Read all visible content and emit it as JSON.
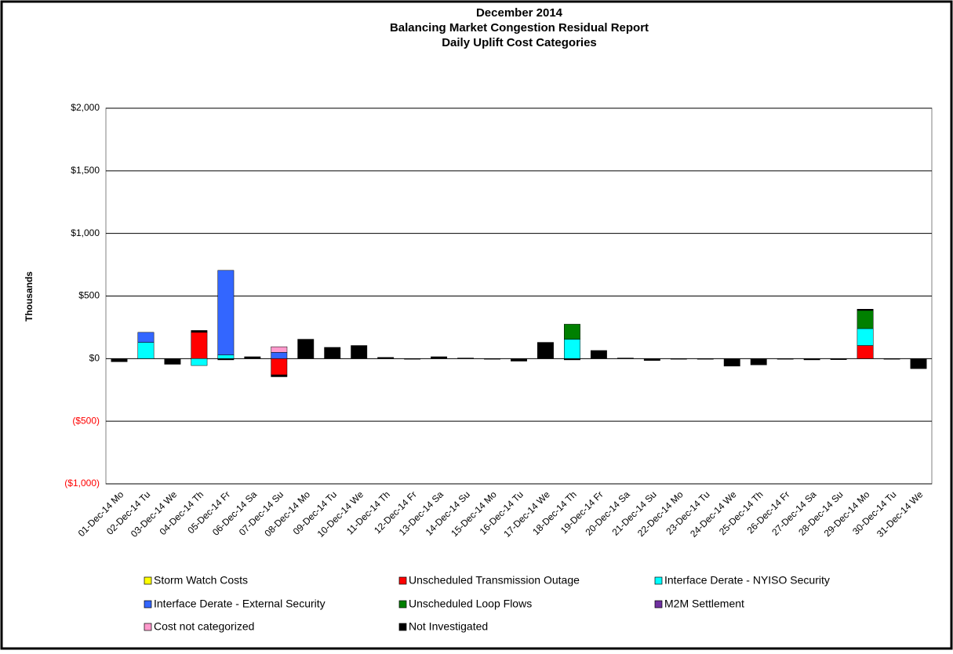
{
  "chart_data": {
    "type": "stacked_bar",
    "title": [
      "December 2014",
      "Balancing Market Congestion Residual Report",
      "Daily Uplift Cost Categories"
    ],
    "y_label": "Thousands",
    "categories": [
      "01-Dec-14 Mo",
      "02-Dec-14 Tu",
      "03-Dec-14 We",
      "04-Dec-14 Th",
      "05-Dec-14 Fr",
      "06-Dec-14 Sa",
      "07-Dec-14 Su",
      "08-Dec-14 Mo",
      "09-Dec-14 Tu",
      "10-Dec-14 We",
      "11-Dec-14 Th",
      "12-Dec-14 Fr",
      "13-Dec-14 Sa",
      "14-Dec-14 Su",
      "15-Dec-14 Mo",
      "16-Dec-14 Tu",
      "17-Dec-14 We",
      "18-Dec-14 Th",
      "19-Dec-14 Fr",
      "20-Dec-14 Sa",
      "21-Dec-14 Su",
      "22-Dec-14 Mo",
      "23-Dec-14 Tu",
      "24-Dec-14 We",
      "25-Dec-14 Th",
      "26-Dec-14 Fr",
      "27-Dec-14 Sa",
      "28-Dec-14 Su",
      "29-Dec-14 Mo",
      "30-Dec-14 Tu",
      "31-Dec-14 We"
    ],
    "series": [
      {
        "name": "Storm Watch Costs",
        "color": "#ffff00",
        "values": [
          0,
          0,
          0,
          0,
          0,
          0,
          0,
          0,
          0,
          0,
          0,
          0,
          0,
          0,
          0,
          0,
          0,
          0,
          0,
          0,
          0,
          0,
          0,
          0,
          0,
          0,
          0,
          0,
          0,
          0,
          0
        ]
      },
      {
        "name": "Unscheduled Transmission Outage",
        "color": "#ff0000",
        "values": [
          0,
          0,
          0,
          210,
          0,
          0,
          -130,
          0,
          0,
          0,
          0,
          0,
          0,
          0,
          0,
          0,
          0,
          0,
          0,
          0,
          0,
          0,
          0,
          0,
          0,
          0,
          0,
          0,
          105,
          0,
          0
        ]
      },
      {
        "name": "Interface Derate - NYISO Security",
        "color": "#00ffff",
        "values": [
          0,
          130,
          0,
          -55,
          30,
          0,
          0,
          0,
          0,
          0,
          0,
          0,
          0,
          0,
          0,
          0,
          0,
          155,
          0,
          0,
          0,
          0,
          0,
          0,
          0,
          0,
          0,
          0,
          135,
          0,
          0
        ]
      },
      {
        "name": "Interface Derate - External Security",
        "color": "#3366ff",
        "values": [
          0,
          80,
          0,
          0,
          675,
          0,
          50,
          0,
          0,
          0,
          0,
          0,
          0,
          0,
          0,
          0,
          0,
          0,
          0,
          0,
          0,
          0,
          0,
          0,
          0,
          0,
          0,
          0,
          0,
          0,
          0
        ]
      },
      {
        "name": "Unscheduled Loop Flows",
        "color": "#008000",
        "values": [
          0,
          0,
          0,
          0,
          0,
          0,
          0,
          0,
          0,
          0,
          0,
          0,
          0,
          0,
          0,
          0,
          0,
          120,
          0,
          0,
          0,
          0,
          0,
          0,
          0,
          0,
          0,
          0,
          145,
          0,
          0
        ]
      },
      {
        "name": "M2M Settlement",
        "color": "#7030a0",
        "values": [
          0,
          0,
          0,
          0,
          0,
          0,
          0,
          0,
          0,
          0,
          0,
          0,
          0,
          0,
          0,
          0,
          0,
          0,
          0,
          0,
          0,
          0,
          0,
          0,
          0,
          0,
          0,
          0,
          0,
          0,
          0
        ]
      },
      {
        "name": "Cost not categorized",
        "color": "#ff99cc",
        "values": [
          0,
          0,
          0,
          0,
          0,
          0,
          45,
          0,
          0,
          0,
          0,
          0,
          0,
          0,
          0,
          0,
          0,
          0,
          0,
          0,
          0,
          0,
          0,
          0,
          0,
          0,
          0,
          0,
          0,
          0,
          0
        ]
      },
      {
        "name": "Not Investigated",
        "color": "#000000",
        "values": [
          -25,
          0,
          -45,
          15,
          -10,
          15,
          -15,
          155,
          90,
          105,
          10,
          -5,
          15,
          5,
          -5,
          -20,
          130,
          -10,
          65,
          5,
          -15,
          -5,
          -5,
          -60,
          -50,
          -5,
          -10,
          -8,
          10,
          -5,
          -80
        ]
      }
    ],
    "ylim": [
      -1000,
      2000
    ],
    "yticks": [
      {
        "value": -1000,
        "label": "($1,000)"
      },
      {
        "value": -500,
        "label": "($500)"
      },
      {
        "value": 0,
        "label": "$0"
      },
      {
        "value": 500,
        "label": "$500"
      },
      {
        "value": 1000,
        "label": "$1,000"
      },
      {
        "value": 1500,
        "label": "$1,500"
      },
      {
        "value": 2000,
        "label": "$2,000"
      }
    ],
    "grid": true
  }
}
